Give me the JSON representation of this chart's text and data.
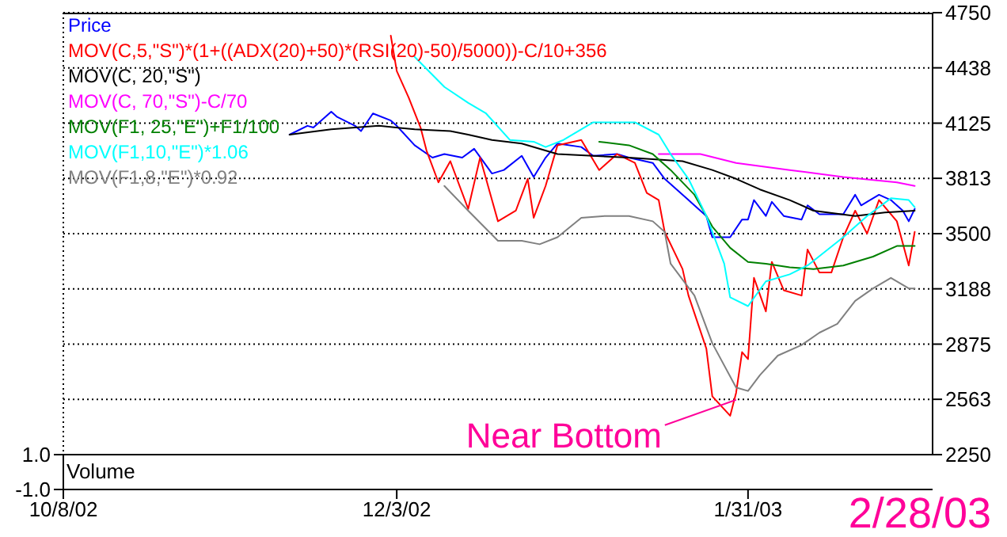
{
  "chart_data": [
    {
      "type": "line",
      "xlim": [
        "2002-10-08",
        "2003-03-03"
      ],
      "xticks": [
        {
          "value": "2002-10-08",
          "label": null
        },
        {
          "value": "2002-12-03",
          "label": null
        },
        {
          "value": "2003-01-31",
          "label": null
        }
      ],
      "ylim": [
        2250,
        4750
      ],
      "yticks": [
        2250,
        2563,
        2875,
        3188,
        3500,
        3813,
        4125,
        4438,
        4750
      ],
      "grid": true,
      "legend": "top left",
      "tick_labels": "y",
      "annotations": [
        {
          "text": "Near Bottom",
          "x": "2003-01-29",
          "y": 2560
        }
      ],
      "series": [
        {
          "name": "Price",
          "color": "#0000ff",
          "x": [
            "2002-11-15",
            "2002-11-18",
            "2002-11-19",
            "2002-11-22",
            "2002-11-23",
            "2002-11-26",
            "2002-11-27",
            "2002-11-29",
            "2002-12-02",
            "2002-12-03",
            "2002-12-06",
            "2002-12-09",
            "2002-12-11",
            "2002-12-14",
            "2002-12-16",
            "2002-12-19",
            "2002-12-21",
            "2002-12-24",
            "2002-12-26",
            "2002-12-28",
            "2002-12-30",
            "2003-01-03",
            "2003-01-05",
            "2003-01-09",
            "2003-01-11",
            "2003-01-15",
            "2003-01-17",
            "2003-01-21",
            "2003-01-24",
            "2003-01-25",
            "2003-01-28",
            "2003-01-30",
            "2003-01-31",
            "2003-02-01",
            "2003-02-03",
            "2003-02-04",
            "2003-02-06",
            "2003-02-09",
            "2003-02-10",
            "2003-02-12",
            "2003-02-16",
            "2003-02-18",
            "2003-02-19",
            "2003-02-22",
            "2003-02-24",
            "2003-02-26",
            "2003-02-27",
            "2003-02-28"
          ],
          "values": [
            4060,
            4110,
            4100,
            4190,
            4160,
            4110,
            4080,
            4180,
            4140,
            4110,
            4000,
            3930,
            3950,
            3930,
            3980,
            3840,
            3860,
            3940,
            3820,
            3930,
            4010,
            3990,
            3940,
            3950,
            3930,
            3900,
            3810,
            3690,
            3600,
            3480,
            3480,
            3580,
            3580,
            3690,
            3600,
            3680,
            3600,
            3580,
            3660,
            3610,
            3610,
            3720,
            3660,
            3720,
            3690,
            3630,
            3570,
            3640
          ]
        },
        {
          "name": "MOV(C,5,\"S\")*(1+((ADX(20)+50)*(RSI(20)-50)/5000))-C/10+356",
          "color": "#ff0000",
          "x": [
            "2002-12-02",
            "2002-12-03",
            "2002-12-05",
            "2002-12-07",
            "2002-12-08",
            "2002-12-10",
            "2002-12-12",
            "2002-12-15",
            "2002-12-17",
            "2002-12-20",
            "2002-12-23",
            "2002-12-25",
            "2002-12-26",
            "2002-12-28",
            "2002-12-30",
            "2003-01-03",
            "2003-01-06",
            "2003-01-09",
            "2003-01-12",
            "2003-01-14",
            "2003-01-16",
            "2003-01-17",
            "2003-01-20",
            "2003-01-21",
            "2003-01-24",
            "2003-01-25",
            "2003-01-28",
            "2003-01-29",
            "2003-01-30",
            "2003-01-31",
            "2003-02-01",
            "2003-02-03",
            "2003-02-04",
            "2003-02-06",
            "2003-02-09",
            "2003-02-10",
            "2003-02-12",
            "2003-02-14",
            "2003-02-16",
            "2003-02-18",
            "2003-02-20",
            "2003-02-22",
            "2003-02-25",
            "2003-02-27",
            "2003-02-28"
          ],
          "values": [
            4620,
            4420,
            4270,
            4100,
            3970,
            3790,
            3910,
            3640,
            3930,
            3570,
            3630,
            3810,
            3590,
            3770,
            4000,
            4030,
            3860,
            3950,
            3900,
            3730,
            3690,
            3510,
            3300,
            3150,
            2850,
            2580,
            2470,
            2600,
            2830,
            2790,
            3250,
            3060,
            3340,
            3180,
            3150,
            3410,
            3280,
            3280,
            3480,
            3630,
            3500,
            3690,
            3570,
            3320,
            3510
          ]
        },
        {
          "name": "MOV(C, 20,\"S\")",
          "color": "#000000",
          "x": [
            "2002-11-15",
            "2002-11-22",
            "2002-11-30",
            "2002-12-06",
            "2002-12-12",
            "2002-12-15",
            "2002-12-19",
            "2002-12-24",
            "2002-12-30",
            "2003-01-11",
            "2003-01-20",
            "2003-01-25",
            "2003-01-29",
            "2003-02-02",
            "2003-02-07",
            "2003-02-11",
            "2003-02-18",
            "2003-02-23",
            "2003-02-28"
          ],
          "values": [
            4060,
            4090,
            4110,
            4090,
            4080,
            4060,
            4030,
            4010,
            3950,
            3930,
            3910,
            3860,
            3810,
            3750,
            3690,
            3630,
            3600,
            3620,
            3630
          ]
        },
        {
          "name": "MOV(C, 70,\"S\")-C/70",
          "color": "#ff00ff",
          "x": [
            "2003-01-16",
            "2003-01-23",
            "2003-01-29",
            "2003-02-07",
            "2003-02-16",
            "2003-02-25",
            "2003-02-28"
          ],
          "values": [
            3950,
            3950,
            3900,
            3860,
            3820,
            3790,
            3770
          ]
        },
        {
          "name": "MOV(F1, 25,\"E\")+F1/100",
          "color": "#008000",
          "x": [
            "2003-01-06",
            "2003-01-11",
            "2003-01-15",
            "2003-01-18",
            "2003-01-22",
            "2003-01-25",
            "2003-01-28",
            "2003-01-31",
            "2003-02-03",
            "2003-02-07",
            "2003-02-11",
            "2003-02-16",
            "2003-02-21",
            "2003-02-25",
            "2003-02-28"
          ],
          "values": [
            4020,
            4000,
            3950,
            3860,
            3720,
            3540,
            3420,
            3340,
            3330,
            3310,
            3300,
            3320,
            3370,
            3430,
            3430
          ]
        },
        {
          "name": "MOV(F1,10,\"E\")*1.06",
          "color": "#00ffff",
          "x": [
            "2002-12-06",
            "2002-12-11",
            "2002-12-15",
            "2002-12-18",
            "2002-12-22",
            "2002-12-26",
            "2002-12-28",
            "2002-12-31",
            "2003-01-05",
            "2003-01-12",
            "2003-01-16",
            "2003-01-18",
            "2003-01-21",
            "2003-01-24",
            "2003-01-27",
            "2003-01-28",
            "2003-01-31",
            "2003-02-03",
            "2003-02-07",
            "2003-02-10",
            "2003-02-16",
            "2003-02-20",
            "2003-02-24",
            "2003-02-27",
            "2003-02-28"
          ],
          "values": [
            4500,
            4330,
            4240,
            4180,
            4030,
            4020,
            3990,
            4030,
            4130,
            4130,
            4060,
            3950,
            3810,
            3600,
            3330,
            3140,
            3090,
            3230,
            3270,
            3320,
            3480,
            3600,
            3700,
            3690,
            3650
          ]
        },
        {
          "name": "MOV(F1,8,\"E\")*0.92",
          "color": "#808080",
          "x": [
            "2002-12-11",
            "2002-12-15",
            "2002-12-20",
            "2002-12-24",
            "2002-12-27",
            "2002-12-30",
            "2003-01-03",
            "2003-01-07",
            "2003-01-11",
            "2003-01-15",
            "2003-01-17",
            "2003-01-18",
            "2003-01-22",
            "2003-01-25",
            "2003-01-29",
            "2003-01-31",
            "2003-02-02",
            "2003-02-05",
            "2003-02-09",
            "2003-02-12",
            "2003-02-15",
            "2003-02-18",
            "2003-02-21",
            "2003-02-24",
            "2003-02-27",
            "2003-02-28"
          ],
          "values": [
            3770,
            3630,
            3460,
            3460,
            3440,
            3480,
            3590,
            3600,
            3600,
            3570,
            3510,
            3330,
            3150,
            2880,
            2630,
            2610,
            2700,
            2810,
            2870,
            2940,
            2990,
            3120,
            3190,
            3250,
            3190,
            3190
          ]
        }
      ]
    },
    {
      "type": "bar",
      "title": "Volume",
      "xlim": [
        "2002-10-08",
        "2003-03-03"
      ],
      "xticks": [
        {
          "value": "2002-10-08",
          "label": "10/8/02"
        },
        {
          "value": "2002-12-03",
          "label": "12/3/02"
        },
        {
          "value": "2003-01-31",
          "label": "1/31/03"
        }
      ],
      "ylim": [
        -1,
        1
      ],
      "yticks": [
        {
          "value": 1,
          "label": "1.0"
        },
        {
          "value": -1,
          "label": "-1.0"
        }
      ],
      "annotations": [
        "2/28/03"
      ]
    }
  ]
}
